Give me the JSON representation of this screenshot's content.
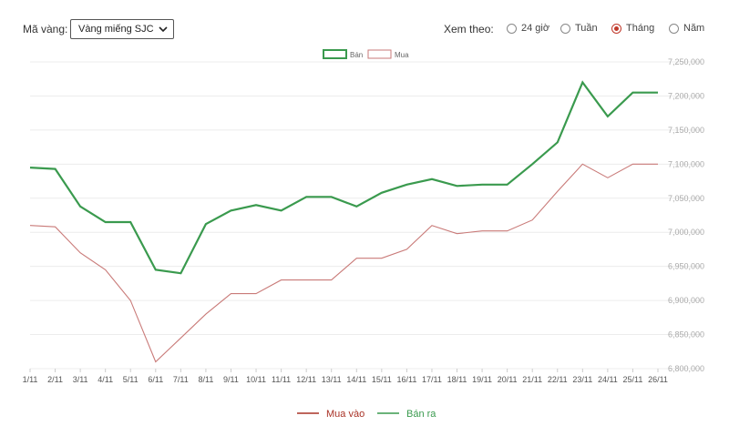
{
  "controls": {
    "gold_label": "Mã vàng:",
    "gold_selected": "Vàng miếng SJC",
    "view_label": "Xem theo:",
    "view_options": [
      {
        "label": "24 giờ",
        "selected": false
      },
      {
        "label": "Tuần",
        "selected": false
      },
      {
        "label": "Tháng",
        "selected": true
      },
      {
        "label": "Năm",
        "selected": false
      }
    ]
  },
  "colors": {
    "sell": "#3a9a4e",
    "buy": "#c97a78",
    "accent": "#c0392b"
  },
  "chart_data": {
    "type": "line",
    "categories": [
      "1/11",
      "2/11",
      "3/11",
      "4/11",
      "5/11",
      "6/11",
      "7/11",
      "8/11",
      "9/11",
      "10/11",
      "11/11",
      "12/11",
      "13/11",
      "14/11",
      "15/11",
      "16/11",
      "17/11",
      "18/11",
      "19/11",
      "20/11",
      "21/11",
      "22/11",
      "23/11",
      "24/11",
      "25/11",
      "26/11"
    ],
    "series": [
      {
        "name": "Bán",
        "values": [
          7095000,
          7093000,
          7038000,
          7015000,
          7015000,
          6945000,
          6940000,
          7012000,
          7032000,
          7040000,
          7032000,
          7052000,
          7052000,
          7038000,
          7058000,
          7070000,
          7078000,
          7068000,
          7070000,
          7070000,
          7100000,
          7132000,
          7220000,
          7170000,
          7205000,
          7205000
        ]
      },
      {
        "name": "Mua",
        "values": [
          7010000,
          7008000,
          6970000,
          6945000,
          6900000,
          6810000,
          6845000,
          6880000,
          6910000,
          6910000,
          6930000,
          6930000,
          6930000,
          6962000,
          6962000,
          6975000,
          7010000,
          6998000,
          7002000,
          7002000,
          7018000,
          7060000,
          7100000,
          7080000,
          7100000,
          7100000
        ]
      }
    ],
    "ylim": [
      6800000,
      7250000
    ],
    "yticks": [
      "6,800,000",
      "6,850,000",
      "6,900,000",
      "6,950,000",
      "7,000,000",
      "7,050,000",
      "7,100,000",
      "7,150,000",
      "7,200,000",
      "7,250,000"
    ],
    "yticks_values": [
      6800000,
      6850000,
      6900000,
      6950000,
      7000000,
      7050000,
      7100000,
      7150000,
      7200000,
      7250000
    ],
    "legend_top": [
      "Bán",
      "Mua"
    ],
    "legend_bottom": [
      "Mua vào",
      "Bán ra"
    ],
    "grid": true
  }
}
